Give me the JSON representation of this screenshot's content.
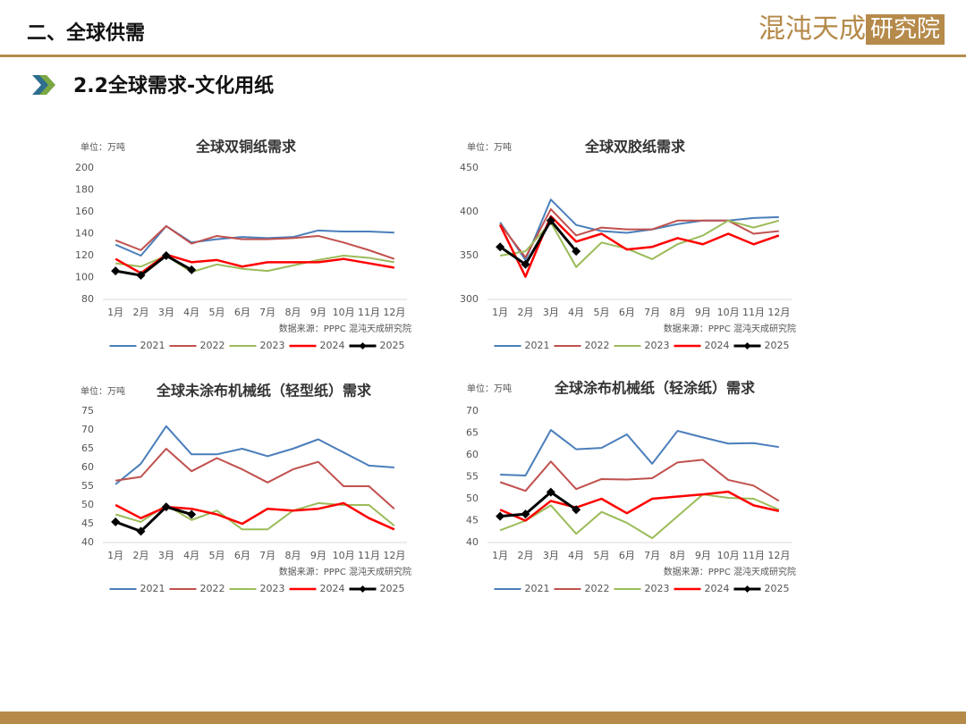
{
  "header": {
    "title": "二、全球供需",
    "subtitle": "2.2全球需求-文化用纸",
    "logo_main": "混沌天成",
    "logo_box": "研究院"
  },
  "chart_data": [
    {
      "type": "line",
      "title": "全球双铜纸需求",
      "unit": "单位：万吨",
      "source": "数据来源：PPPC   混沌天成研究院",
      "categories": [
        "1月",
        "2月",
        "3月",
        "4月",
        "5月",
        "6月",
        "7月",
        "8月",
        "9月",
        "10月",
        "11月",
        "12月"
      ],
      "ylim": [
        80,
        200
      ],
      "yticks": [
        80,
        100,
        120,
        140,
        160,
        180,
        200
      ],
      "series": [
        {
          "name": "2021",
          "color": "#4a7ebb",
          "line_width": 2,
          "values": [
            130,
            120,
            147,
            132,
            135,
            137,
            136,
            137,
            143,
            142,
            142,
            141
          ]
        },
        {
          "name": "2022",
          "color": "#c0504d",
          "line_width": 2,
          "values": [
            134,
            125,
            147,
            131,
            138,
            135,
            135,
            136,
            138,
            132,
            125,
            117
          ]
        },
        {
          "name": "2023",
          "color": "#9bbb59",
          "line_width": 2,
          "values": [
            113,
            110,
            120,
            105,
            112,
            108,
            106,
            111,
            116,
            120,
            118,
            114
          ]
        },
        {
          "name": "2024",
          "color": "#ff0000",
          "line_width": 2.5,
          "values": [
            117,
            104,
            121,
            114,
            116,
            110,
            114,
            114,
            114,
            117,
            113,
            109
          ]
        },
        {
          "name": "2025",
          "color": "#000000",
          "line_width": 3,
          "marker": "diamond",
          "values": [
            106,
            102,
            120,
            107,
            null,
            null,
            null,
            null,
            null,
            null,
            null,
            null
          ]
        }
      ]
    },
    {
      "type": "line",
      "title": "全球双胶纸需求",
      "unit": "单位：万吨",
      "source": "数据来源：PPPC   混沌天成研究院",
      "categories": [
        "1月",
        "2月",
        "3月",
        "4月",
        "5月",
        "6月",
        "7月",
        "8月",
        "9月",
        "10月",
        "11月",
        "12月"
      ],
      "ylim": [
        300,
        450
      ],
      "yticks": [
        300,
        350,
        400,
        450
      ],
      "series": [
        {
          "name": "2021",
          "color": "#4a7ebb",
          "line_width": 2,
          "values": [
            388,
            345,
            414,
            385,
            378,
            376,
            380,
            386,
            390,
            390,
            393,
            394
          ]
        },
        {
          "name": "2022",
          "color": "#c0504d",
          "line_width": 2,
          "values": [
            386,
            348,
            403,
            373,
            382,
            380,
            380,
            390,
            390,
            390,
            375,
            378
          ]
        },
        {
          "name": "2023",
          "color": "#9bbb59",
          "line_width": 2,
          "values": [
            350,
            355,
            388,
            337,
            365,
            358,
            346,
            363,
            373,
            390,
            382,
            390
          ]
        },
        {
          "name": "2024",
          "color": "#ff0000",
          "line_width": 2.5,
          "values": [
            385,
            326,
            395,
            366,
            375,
            357,
            360,
            370,
            363,
            375,
            363,
            373
          ]
        },
        {
          "name": "2025",
          "color": "#000000",
          "line_width": 3,
          "marker": "diamond",
          "values": [
            360,
            340,
            390,
            355,
            null,
            null,
            null,
            null,
            null,
            null,
            null,
            null
          ]
        }
      ]
    },
    {
      "type": "line",
      "title": "全球未涂布机械纸（轻型纸）需求",
      "unit": "单位：万吨",
      "source": "数据来源：PPPC   混沌天成研究院",
      "categories": [
        "1月",
        "2月",
        "3月",
        "4月",
        "5月",
        "6月",
        "7月",
        "8月",
        "9月",
        "10月",
        "11月",
        "12月"
      ],
      "ylim": [
        40,
        75
      ],
      "yticks": [
        40,
        45,
        50,
        55,
        60,
        65,
        70,
        75
      ],
      "series": [
        {
          "name": "2021",
          "color": "#4a7ebb",
          "line_width": 2,
          "values": [
            55.5,
            61,
            71,
            63.5,
            63.5,
            65,
            63,
            65,
            67.5,
            64,
            60.5,
            60
          ]
        },
        {
          "name": "2022",
          "color": "#c0504d",
          "line_width": 2,
          "values": [
            56.5,
            57.5,
            65,
            59,
            62.5,
            59.5,
            56,
            59.5,
            61.5,
            55,
            55,
            49
          ]
        },
        {
          "name": "2023",
          "color": "#9bbb59",
          "line_width": 2,
          "values": [
            47.5,
            45.5,
            50,
            46,
            48.5,
            43.5,
            43.5,
            48.5,
            50.5,
            50,
            50,
            44.5
          ]
        },
        {
          "name": "2024",
          "color": "#ff0000",
          "line_width": 2.5,
          "values": [
            50,
            46.5,
            49.5,
            49,
            47.5,
            45,
            49,
            48.5,
            49,
            50.5,
            46.5,
            43.5
          ]
        },
        {
          "name": "2025",
          "color": "#000000",
          "line_width": 3,
          "marker": "diamond",
          "values": [
            45.5,
            43,
            49.5,
            47.5,
            null,
            null,
            null,
            null,
            null,
            null,
            null,
            null
          ]
        }
      ]
    },
    {
      "type": "line",
      "title": "全球涂布机械纸（轻涂纸）需求",
      "unit": "单位：万吨",
      "source": "数据来源：PPPC   混沌天成研究院",
      "categories": [
        "1月",
        "2月",
        "3月",
        "4月",
        "5月",
        "6月",
        "7月",
        "8月",
        "9月",
        "10月",
        "11月",
        "12月"
      ],
      "ylim": [
        40,
        70
      ],
      "yticks": [
        40,
        45,
        50,
        55,
        60,
        65,
        70
      ],
      "series": [
        {
          "name": "2021",
          "color": "#4a7ebb",
          "line_width": 2,
          "values": [
            55.5,
            55.3,
            65.7,
            61.3,
            61.6,
            64.7,
            58,
            65.5,
            64,
            62.6,
            62.7,
            61.8
          ]
        },
        {
          "name": "2022",
          "color": "#c0504d",
          "line_width": 2,
          "values": [
            53.8,
            51.8,
            58.5,
            52.2,
            54.5,
            54.4,
            54.7,
            58.3,
            58.9,
            54.3,
            53,
            49.5
          ]
        },
        {
          "name": "2023",
          "color": "#9bbb59",
          "line_width": 2,
          "values": [
            42.8,
            45,
            48.5,
            42,
            47,
            44.5,
            41,
            46,
            51,
            50.2,
            50,
            47.5
          ]
        },
        {
          "name": "2024",
          "color": "#ff0000",
          "line_width": 2.5,
          "values": [
            47.5,
            45,
            49.5,
            48,
            50,
            46.7,
            50,
            50.5,
            51,
            51.6,
            48.5,
            47.2
          ]
        },
        {
          "name": "2025",
          "color": "#000000",
          "line_width": 3,
          "marker": "diamond",
          "values": [
            46,
            46.5,
            51.5,
            47.5,
            null,
            null,
            null,
            null,
            null,
            null,
            null,
            null
          ]
        }
      ]
    }
  ]
}
